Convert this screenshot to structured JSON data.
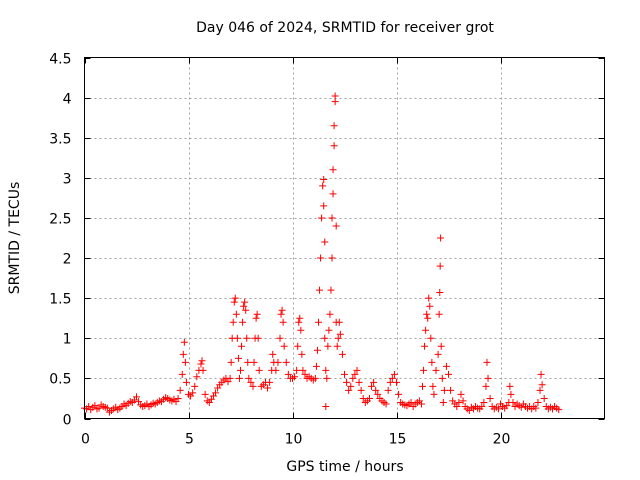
{
  "chart_data": {
    "type": "scatter",
    "title": "Day 046 of 2024, SRMTID for receiver grot",
    "xlabel": "GPS time / hours",
    "ylabel": "SRMTID / TECUs",
    "xlim": [
      0,
      25
    ],
    "ylim": [
      0,
      4.5
    ],
    "xticks": [
      0,
      5,
      10,
      15,
      20
    ],
    "xtick_labels": [
      "0",
      "5",
      "10",
      "15",
      "20"
    ],
    "yticks": [
      0,
      0.5,
      1,
      1.5,
      2,
      2.5,
      3,
      3.5,
      4,
      4.5
    ],
    "ytick_labels": [
      "0",
      "0.5",
      "1",
      "1.5",
      "2",
      "2.5",
      "3",
      "3.5",
      "4",
      "4.5"
    ],
    "grid": true,
    "marker": "+",
    "color": "#ff0000",
    "series": [
      {
        "name": "SRMTID",
        "points": [
          [
            0.0,
            0.13
          ],
          [
            0.1,
            0.12
          ],
          [
            0.2,
            0.15
          ],
          [
            0.3,
            0.11
          ],
          [
            0.4,
            0.14
          ],
          [
            0.5,
            0.16
          ],
          [
            0.6,
            0.12
          ],
          [
            0.7,
            0.13
          ],
          [
            0.8,
            0.17
          ],
          [
            0.9,
            0.15
          ],
          [
            1.0,
            0.14
          ],
          [
            1.1,
            0.13
          ],
          [
            1.2,
            0.08
          ],
          [
            1.3,
            0.1
          ],
          [
            1.4,
            0.12
          ],
          [
            1.5,
            0.14
          ],
          [
            1.6,
            0.11
          ],
          [
            1.7,
            0.13
          ],
          [
            1.8,
            0.15
          ],
          [
            1.9,
            0.18
          ],
          [
            2.0,
            0.16
          ],
          [
            2.1,
            0.19
          ],
          [
            2.2,
            0.21
          ],
          [
            2.3,
            0.2
          ],
          [
            2.4,
            0.23
          ],
          [
            2.5,
            0.27
          ],
          [
            2.6,
            0.21
          ],
          [
            2.7,
            0.17
          ],
          [
            2.8,
            0.15
          ],
          [
            2.9,
            0.16
          ],
          [
            3.0,
            0.18
          ],
          [
            3.1,
            0.15
          ],
          [
            3.2,
            0.17
          ],
          [
            3.3,
            0.19
          ],
          [
            3.4,
            0.18
          ],
          [
            3.5,
            0.2
          ],
          [
            3.6,
            0.22
          ],
          [
            3.7,
            0.21
          ],
          [
            3.8,
            0.24
          ],
          [
            3.9,
            0.26
          ],
          [
            4.0,
            0.25
          ],
          [
            4.1,
            0.23
          ],
          [
            4.2,
            0.22
          ],
          [
            4.3,
            0.24
          ],
          [
            4.4,
            0.21
          ],
          [
            4.5,
            0.25
          ],
          [
            4.6,
            0.35
          ],
          [
            4.7,
            0.55
          ],
          [
            4.75,
            0.8
          ],
          [
            4.8,
            0.95
          ],
          [
            4.85,
            0.7
          ],
          [
            4.9,
            0.45
          ],
          [
            5.0,
            0.3
          ],
          [
            5.1,
            0.28
          ],
          [
            5.2,
            0.32
          ],
          [
            5.3,
            0.4
          ],
          [
            5.4,
            0.52
          ],
          [
            5.5,
            0.6
          ],
          [
            5.6,
            0.68
          ],
          [
            5.65,
            0.72
          ],
          [
            5.7,
            0.6
          ],
          [
            5.8,
            0.3
          ],
          [
            5.9,
            0.22
          ],
          [
            6.0,
            0.2
          ],
          [
            6.1,
            0.24
          ],
          [
            6.2,
            0.28
          ],
          [
            6.3,
            0.32
          ],
          [
            6.4,
            0.38
          ],
          [
            6.5,
            0.42
          ],
          [
            6.6,
            0.45
          ],
          [
            6.7,
            0.48
          ],
          [
            6.8,
            0.5
          ],
          [
            6.9,
            0.46
          ],
          [
            7.0,
            0.5
          ],
          [
            7.05,
            0.7
          ],
          [
            7.1,
            1.0
          ],
          [
            7.15,
            1.2
          ],
          [
            7.2,
            1.45
          ],
          [
            7.25,
            1.5
          ],
          [
            7.3,
            1.3
          ],
          [
            7.35,
            1.0
          ],
          [
            7.4,
            0.75
          ],
          [
            7.45,
            0.5
          ],
          [
            7.5,
            0.6
          ],
          [
            7.55,
            0.9
          ],
          [
            7.6,
            1.2
          ],
          [
            7.65,
            1.4
          ],
          [
            7.7,
            1.45
          ],
          [
            7.75,
            1.35
          ],
          [
            7.8,
            1.0
          ],
          [
            7.85,
            0.7
          ],
          [
            7.9,
            0.5
          ],
          [
            8.0,
            0.45
          ],
          [
            8.1,
            0.4
          ],
          [
            8.15,
            0.7
          ],
          [
            8.2,
            1.0
          ],
          [
            8.25,
            1.25
          ],
          [
            8.3,
            1.3
          ],
          [
            8.35,
            1.0
          ],
          [
            8.4,
            0.6
          ],
          [
            8.5,
            0.4
          ],
          [
            8.6,
            0.42
          ],
          [
            8.7,
            0.45
          ],
          [
            8.8,
            0.38
          ],
          [
            8.9,
            0.45
          ],
          [
            9.0,
            0.6
          ],
          [
            9.05,
            0.8
          ],
          [
            9.1,
            0.7
          ],
          [
            9.2,
            0.6
          ],
          [
            9.3,
            0.7
          ],
          [
            9.4,
            1.0
          ],
          [
            9.45,
            1.3
          ],
          [
            9.5,
            1.35
          ],
          [
            9.55,
            1.2
          ],
          [
            9.6,
            0.9
          ],
          [
            9.7,
            0.7
          ],
          [
            9.8,
            0.55
          ],
          [
            9.9,
            0.5
          ],
          [
            10.0,
            0.5
          ],
          [
            10.1,
            0.52
          ],
          [
            10.2,
            0.6
          ],
          [
            10.25,
            0.9
          ],
          [
            10.3,
            1.2
          ],
          [
            10.35,
            1.25
          ],
          [
            10.4,
            1.1
          ],
          [
            10.45,
            0.8
          ],
          [
            10.5,
            0.6
          ],
          [
            10.6,
            0.55
          ],
          [
            10.7,
            0.5
          ],
          [
            10.8,
            0.52
          ],
          [
            10.9,
            0.5
          ],
          [
            11.0,
            0.48
          ],
          [
            11.1,
            0.5
          ],
          [
            11.15,
            0.65
          ],
          [
            11.2,
            0.85
          ],
          [
            11.25,
            1.2
          ],
          [
            11.3,
            1.6
          ],
          [
            11.35,
            2.0
          ],
          [
            11.4,
            2.5
          ],
          [
            11.45,
            2.9
          ],
          [
            11.5,
            2.98
          ],
          [
            11.5,
            2.65
          ],
          [
            11.55,
            2.2
          ],
          [
            11.55,
            1.0
          ],
          [
            11.6,
            0.6
          ],
          [
            11.6,
            0.15
          ],
          [
            11.65,
            0.5
          ],
          [
            11.7,
            0.9
          ],
          [
            11.75,
            1.1
          ],
          [
            11.8,
            1.3
          ],
          [
            11.85,
            1.6
          ],
          [
            11.9,
            2.0
          ],
          [
            11.9,
            2.5
          ],
          [
            11.95,
            2.8
          ],
          [
            11.95,
            3.1
          ],
          [
            12.0,
            3.4
          ],
          [
            12.0,
            3.65
          ],
          [
            12.05,
            3.95
          ],
          [
            12.05,
            4.02
          ],
          [
            12.1,
            2.4
          ],
          [
            12.1,
            1.2
          ],
          [
            12.15,
            0.9
          ],
          [
            12.2,
            1.0
          ],
          [
            12.25,
            1.2
          ],
          [
            12.3,
            1.05
          ],
          [
            12.4,
            0.8
          ],
          [
            12.5,
            0.55
          ],
          [
            12.6,
            0.45
          ],
          [
            12.7,
            0.35
          ],
          [
            12.8,
            0.4
          ],
          [
            12.9,
            0.5
          ],
          [
            13.0,
            0.55
          ],
          [
            13.1,
            0.6
          ],
          [
            13.2,
            0.45
          ],
          [
            13.3,
            0.35
          ],
          [
            13.4,
            0.25
          ],
          [
            13.5,
            0.2
          ],
          [
            13.6,
            0.22
          ],
          [
            13.7,
            0.25
          ],
          [
            13.8,
            0.4
          ],
          [
            13.9,
            0.45
          ],
          [
            14.0,
            0.35
          ],
          [
            14.1,
            0.3
          ],
          [
            14.2,
            0.25
          ],
          [
            14.3,
            0.22
          ],
          [
            14.4,
            0.2
          ],
          [
            14.5,
            0.18
          ],
          [
            14.6,
            0.35
          ],
          [
            14.7,
            0.45
          ],
          [
            14.8,
            0.5
          ],
          [
            14.9,
            0.55
          ],
          [
            15.0,
            0.45
          ],
          [
            15.1,
            0.3
          ],
          [
            15.2,
            0.2
          ],
          [
            15.3,
            0.18
          ],
          [
            15.4,
            0.17
          ],
          [
            15.5,
            0.16
          ],
          [
            15.6,
            0.18
          ],
          [
            15.7,
            0.2
          ],
          [
            15.8,
            0.15
          ],
          [
            15.9,
            0.18
          ],
          [
            16.0,
            0.2
          ],
          [
            16.1,
            0.22
          ],
          [
            16.2,
            0.18
          ],
          [
            16.25,
            0.4
          ],
          [
            16.3,
            0.6
          ],
          [
            16.35,
            0.9
          ],
          [
            16.4,
            1.1
          ],
          [
            16.45,
            1.3
          ],
          [
            16.5,
            1.25
          ],
          [
            16.55,
            1.5
          ],
          [
            16.6,
            1.4
          ],
          [
            16.65,
            1.0
          ],
          [
            16.7,
            0.7
          ],
          [
            16.75,
            0.4
          ],
          [
            16.8,
            0.3
          ],
          [
            16.9,
            0.6
          ],
          [
            17.0,
            0.8
          ],
          [
            17.05,
            1.3
          ],
          [
            17.08,
            1.57
          ],
          [
            17.1,
            1.9
          ],
          [
            17.12,
            2.25
          ],
          [
            17.15,
            0.9
          ],
          [
            17.2,
            0.5
          ],
          [
            17.25,
            0.2
          ],
          [
            17.3,
            0.35
          ],
          [
            17.4,
            0.65
          ],
          [
            17.5,
            0.55
          ],
          [
            17.6,
            0.35
          ],
          [
            17.7,
            0.22
          ],
          [
            17.8,
            0.18
          ],
          [
            17.9,
            0.15
          ],
          [
            18.0,
            0.2
          ],
          [
            18.1,
            0.3
          ],
          [
            18.2,
            0.22
          ],
          [
            18.3,
            0.15
          ],
          [
            18.4,
            0.12
          ],
          [
            18.5,
            0.1
          ],
          [
            18.6,
            0.14
          ],
          [
            18.7,
            0.12
          ],
          [
            18.8,
            0.15
          ],
          [
            18.9,
            0.13
          ],
          [
            19.0,
            0.12
          ],
          [
            19.1,
            0.15
          ],
          [
            19.2,
            0.2
          ],
          [
            19.3,
            0.4
          ],
          [
            19.35,
            0.7
          ],
          [
            19.4,
            0.5
          ],
          [
            19.5,
            0.25
          ],
          [
            19.6,
            0.15
          ],
          [
            19.7,
            0.12
          ],
          [
            19.8,
            0.14
          ],
          [
            19.9,
            0.12
          ],
          [
            20.0,
            0.18
          ],
          [
            20.1,
            0.15
          ],
          [
            20.2,
            0.13
          ],
          [
            20.3,
            0.16
          ],
          [
            20.4,
            0.2
          ],
          [
            20.45,
            0.4
          ],
          [
            20.5,
            0.3
          ],
          [
            20.6,
            0.2
          ],
          [
            20.7,
            0.15
          ],
          [
            20.8,
            0.18
          ],
          [
            20.9,
            0.16
          ],
          [
            21.0,
            0.14
          ],
          [
            21.1,
            0.18
          ],
          [
            21.2,
            0.15
          ],
          [
            21.3,
            0.13
          ],
          [
            21.4,
            0.15
          ],
          [
            21.5,
            0.12
          ],
          [
            21.6,
            0.15
          ],
          [
            21.7,
            0.13
          ],
          [
            21.8,
            0.2
          ],
          [
            21.9,
            0.35
          ],
          [
            21.95,
            0.55
          ],
          [
            22.0,
            0.42
          ],
          [
            22.1,
            0.25
          ],
          [
            22.2,
            0.15
          ],
          [
            22.3,
            0.12
          ],
          [
            22.4,
            0.14
          ],
          [
            22.5,
            0.12
          ],
          [
            22.6,
            0.15
          ],
          [
            22.7,
            0.13
          ],
          [
            22.8,
            0.11
          ]
        ]
      }
    ]
  }
}
